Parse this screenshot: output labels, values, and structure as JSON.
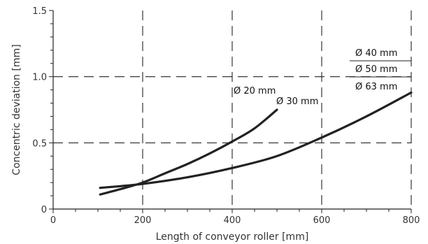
{
  "chart_data": {
    "type": "line",
    "title": "",
    "xlabel": "Length of conveyor roller [mm]",
    "ylabel": "Concentric deviation [mm]",
    "xlim": [
      0,
      800
    ],
    "ylim": [
      0,
      1.5
    ],
    "x_ticks": [
      0,
      200,
      400,
      600,
      800
    ],
    "x_tick_labels": [
      "0",
      "200",
      "400",
      "600",
      "800"
    ],
    "y_ticks": [
      0,
      0.5,
      1.0,
      1.5
    ],
    "y_tick_labels": [
      "0",
      "0.5",
      "1.0",
      "1.5"
    ],
    "grid": "dashed, at major ticks",
    "line_color": "#222222",
    "series": [
      {
        "name": "Ø 20 mm",
        "x": [
          105,
          150,
          200,
          250,
          300,
          350,
          400,
          450,
          500
        ],
        "y": [
          0.11,
          0.15,
          0.2,
          0.27,
          0.34,
          0.42,
          0.51,
          0.61,
          0.75
        ]
      },
      {
        "name": "Ø 30 mm",
        "x": [
          105,
          200,
          300,
          400,
          500,
          600,
          700,
          800
        ],
        "y": [
          0.16,
          0.19,
          0.24,
          0.31,
          0.4,
          0.54,
          0.7,
          0.88
        ]
      }
    ],
    "annotations": {
      "curve_20": "Ø 20 mm",
      "curve_30": "Ø 30 mm",
      "right_group": [
        "Ø 40 mm",
        "Ø 50 mm",
        "Ø 63 mm"
      ]
    }
  }
}
